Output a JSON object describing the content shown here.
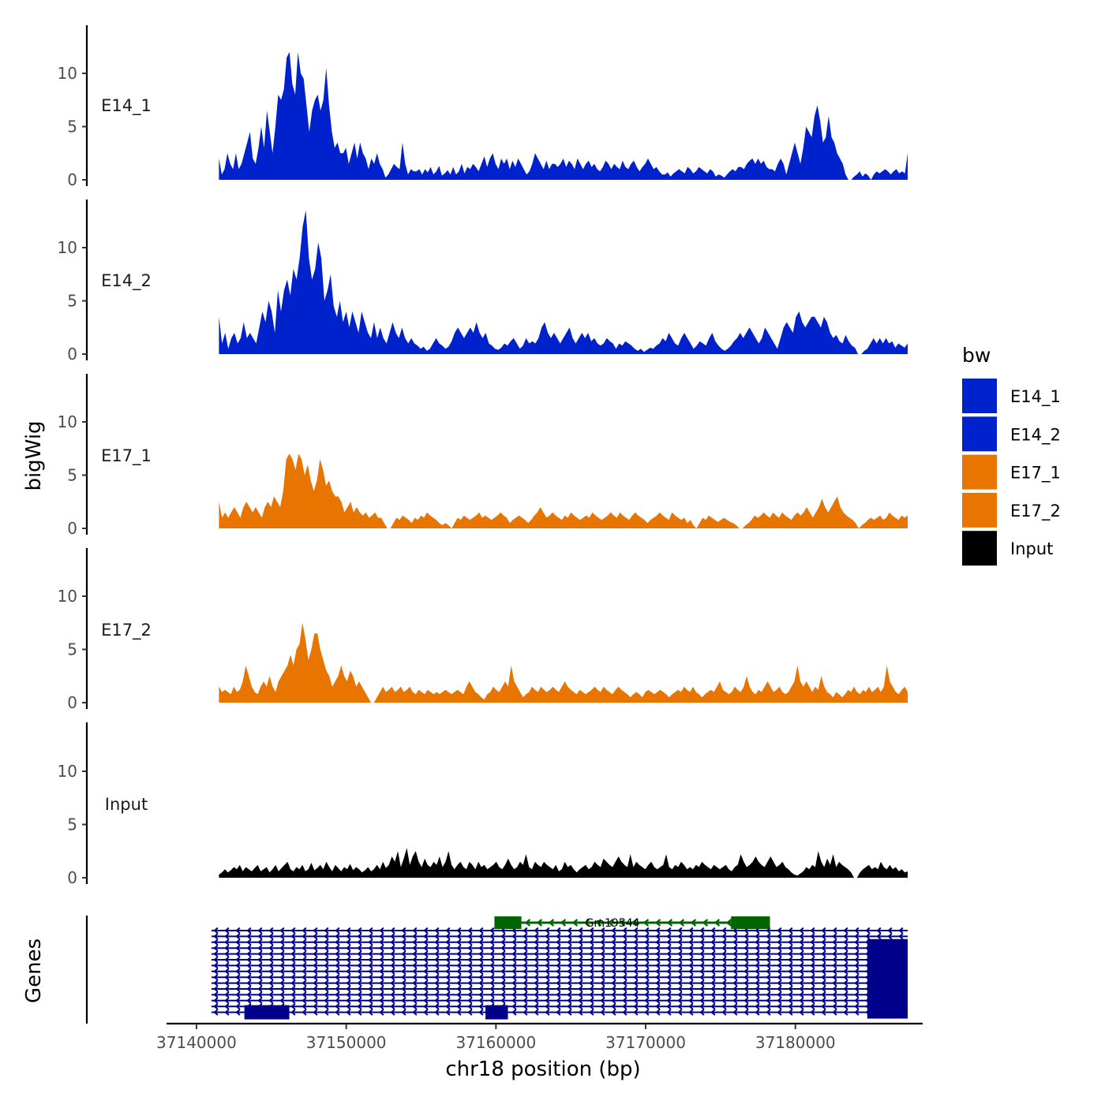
{
  "chart_data": {
    "type": "area",
    "chromosome": "chr18",
    "xlabel": "chr18 position (bp)",
    "ylabel": "bigWig",
    "genes_ylabel": "Genes",
    "xlim": [
      37138000,
      37188500
    ],
    "data_xrange": [
      37141500,
      37187500
    ],
    "ylim": [
      0,
      14
    ],
    "x_ticks": [
      37140000,
      37150000,
      37160000,
      37170000,
      37180000
    ],
    "x_tick_labels": [
      "37140000",
      "37150000",
      "37160000",
      "37170000",
      "37180000"
    ],
    "y_ticks": [
      0,
      5,
      10
    ],
    "y_tick_labels": [
      "0",
      "5",
      "10"
    ],
    "legend": {
      "title": "bw",
      "entries": [
        {
          "label": "E14_1",
          "color": "#0022cc"
        },
        {
          "label": "E14_2",
          "color": "#0022cc"
        },
        {
          "label": "E17_1",
          "color": "#e87500"
        },
        {
          "label": "E17_2",
          "color": "#e87500"
        },
        {
          "label": "Input",
          "color": "#000000"
        }
      ]
    },
    "series": [
      {
        "name": "E14_1",
        "color": "#0022cc",
        "values": [
          2,
          0.5,
          1,
          2.5,
          1.5,
          1,
          2.5,
          1,
          1.5,
          2.5,
          3.5,
          4.5,
          2,
          1.5,
          3,
          5,
          3,
          6.5,
          4.5,
          2.5,
          5,
          8,
          7.5,
          8.5,
          11.5,
          12,
          9,
          8,
          12,
          10,
          9.5,
          7,
          4.5,
          6.5,
          7.5,
          8,
          6.5,
          7.5,
          10.5,
          7,
          4.5,
          3,
          3.5,
          2.5,
          2.5,
          3,
          1.5,
          2.5,
          3.5,
          2,
          3.5,
          2.5,
          2,
          1,
          2,
          1.5,
          2.5,
          1.5,
          1,
          0.2,
          0.5,
          1,
          1.5,
          1.2,
          1,
          3.5,
          1.5,
          0.5,
          1,
          0.8,
          0.8,
          1,
          0.5,
          1,
          0.7,
          1.2,
          0.5,
          0.8,
          1.3,
          0.4,
          0.6,
          0.9,
          0.5,
          1.2,
          0.5,
          0.8,
          1.5,
          0.6,
          1.2,
          1,
          1.5,
          1.2,
          0.8,
          1.5,
          2.2,
          1.2,
          2,
          2.5,
          1.5,
          1,
          2,
          1.5,
          2,
          1,
          1.8,
          1.2,
          2,
          1.5,
          1,
          0.5,
          0.8,
          1.5,
          2.5,
          2,
          1.5,
          1,
          1.8,
          1,
          1.5,
          1.5,
          1.2,
          1.5,
          2,
          1.2,
          1.8,
          1.5,
          1,
          2,
          1.5,
          1,
          1.5,
          1.8,
          1.2,
          1.5,
          1,
          0.8,
          1.2,
          1.8,
          1.5,
          1,
          1.5,
          1.2,
          1,
          1.8,
          1.2,
          1,
          1.5,
          1.8,
          1.2,
          0.8,
          1.2,
          1.5,
          2,
          1.5,
          1,
          1.2,
          0.8,
          0.5,
          0.5,
          0.7,
          0.3,
          0.6,
          0.8,
          1,
          0.8,
          0.6,
          1.2,
          1,
          0.6,
          0.8,
          1.2,
          1,
          0.8,
          0.6,
          1,
          0.8,
          0.3,
          0.5,
          0.4,
          0.2,
          0.5,
          0.8,
          1,
          0.8,
          1.2,
          1.2,
          1,
          1.5,
          1.8,
          2,
          1.5,
          2,
          1.5,
          1.8,
          1.2,
          1,
          1,
          0.8,
          1.5,
          2,
          1.5,
          0.5,
          1.5,
          2.5,
          3.5,
          2.5,
          1.5,
          3,
          5,
          4.5,
          4,
          6,
          7,
          5.5,
          3.5,
          4,
          6,
          4,
          3.5,
          2.5,
          2,
          1.5,
          0.5,
          0,
          0,
          0.3,
          0.5,
          0.8,
          0.3,
          0.6,
          0.4,
          0,
          0.5,
          0.8,
          0.6,
          0.8,
          1,
          0.8,
          0.5,
          0.8,
          1,
          0.6,
          0.8,
          0.6,
          2.5
        ]
      },
      {
        "name": "E14_2",
        "color": "#0022cc",
        "values": [
          3.5,
          1,
          2,
          0.5,
          1.5,
          2,
          1,
          1.5,
          3,
          1.5,
          2,
          1.5,
          1,
          2.5,
          4,
          3,
          5,
          4,
          2,
          6,
          4,
          6,
          7,
          5.5,
          8,
          7,
          9,
          12,
          13.5,
          9,
          7,
          8,
          10.5,
          9,
          5,
          6,
          7.5,
          4.5,
          3.5,
          5,
          3,
          4,
          2.5,
          4,
          3,
          2,
          4,
          3,
          2,
          1.5,
          3,
          1.5,
          2.5,
          1.5,
          1,
          2,
          3,
          2,
          1.5,
          2.5,
          1.5,
          1,
          1.5,
          1,
          0.8,
          0.5,
          0.7,
          0.3,
          0.5,
          1,
          1.5,
          1,
          0.8,
          0.5,
          0.7,
          1.2,
          2,
          2.5,
          2,
          1.5,
          2,
          2.5,
          2,
          3,
          2,
          1.5,
          2,
          1,
          0.8,
          0.5,
          0.4,
          0.6,
          1,
          0.8,
          1.2,
          1.5,
          1,
          0.5,
          0.8,
          1.5,
          1,
          1.2,
          1,
          1.5,
          2.5,
          3,
          2,
          1.5,
          2,
          1.5,
          1,
          1.5,
          2,
          2.5,
          1.5,
          1,
          1.5,
          2,
          1.5,
          2,
          1.2,
          1.5,
          1,
          0.8,
          1,
          1.5,
          1.2,
          1,
          0.5,
          1,
          0.8,
          1.2,
          1,
          0.8,
          0.5,
          0.3,
          0.5,
          0.2,
          0.4,
          0.6,
          0.5,
          0.8,
          1,
          1.5,
          1.2,
          2,
          1.5,
          1,
          0.8,
          1.5,
          2,
          1.5,
          1,
          0.5,
          0.8,
          1.2,
          1,
          0.8,
          1.5,
          2,
          1.2,
          0.8,
          0.5,
          0.3,
          0.5,
          0.8,
          1.2,
          1.5,
          2,
          1.5,
          2,
          2.5,
          2,
          1.5,
          1,
          1.5,
          2.5,
          2,
          1.5,
          1,
          0.5,
          1.5,
          2.5,
          3,
          2.5,
          2,
          3.5,
          4,
          3,
          2.5,
          3,
          3.5,
          3.5,
          3,
          2.5,
          3.5,
          3,
          2,
          1.5,
          1.8,
          1.2,
          1,
          1.8,
          1.2,
          0.8,
          0.6,
          0,
          0,
          0.3,
          0.5,
          1,
          1.5,
          1,
          1.5,
          1,
          1.5,
          1,
          1.2,
          0.6,
          1,
          0.8,
          0.6,
          1
        ]
      },
      {
        "name": "E17_1",
        "color": "#e87500",
        "values": [
          2.5,
          1,
          1.5,
          1,
          1.5,
          2,
          1.5,
          1,
          2,
          2.5,
          2,
          1.5,
          2,
          1.5,
          1,
          2,
          2.5,
          2,
          3,
          2.5,
          2,
          3.5,
          6.5,
          7,
          6.5,
          5.5,
          7,
          6.5,
          5,
          6,
          4.5,
          3.5,
          4.5,
          6.5,
          5.5,
          4,
          4.5,
          3.5,
          3,
          3,
          2.5,
          1.5,
          2,
          2.5,
          1.5,
          2,
          1.5,
          1.2,
          1.5,
          1,
          1.2,
          1.5,
          1,
          1,
          0.5,
          0,
          0,
          0.5,
          1,
          0.8,
          1.2,
          1,
          0.8,
          0.5,
          1,
          0.8,
          1.2,
          1,
          1.5,
          1.2,
          1,
          0.8,
          0.5,
          0.3,
          0.5,
          0.3,
          0,
          0.5,
          1,
          0.8,
          1.2,
          1,
          0.8,
          1,
          1.2,
          1.5,
          1,
          1.2,
          1,
          0.8,
          1,
          1.2,
          1.5,
          1.2,
          1,
          0.5,
          0.8,
          1,
          1.2,
          1,
          0.8,
          0.5,
          0.8,
          1.2,
          1.5,
          2,
          1.5,
          1,
          1.2,
          1.5,
          1.2,
          1,
          0.8,
          1.2,
          1,
          1.5,
          1.2,
          1,
          0.8,
          1,
          1.2,
          1,
          1.5,
          1.2,
          1,
          0.8,
          1,
          1.2,
          1.5,
          1.2,
          1,
          1.5,
          1.2,
          1,
          0.8,
          1.2,
          1.5,
          1.2,
          1,
          0.8,
          0.5,
          0.8,
          1,
          1.2,
          1.5,
          1.2,
          1,
          0.8,
          1.5,
          1.2,
          1,
          0.8,
          1,
          0.5,
          0.8,
          0.3,
          0,
          0.5,
          1,
          0.8,
          1.2,
          1,
          0.8,
          0.6,
          0.8,
          1,
          0.8,
          0.6,
          0.5,
          0.3,
          0,
          0,
          0.3,
          0.5,
          0.8,
          1.2,
          1,
          1.2,
          1.5,
          1.2,
          1,
          1.5,
          1.2,
          1,
          1.5,
          1.2,
          1,
          0.8,
          1.2,
          1.5,
          1.2,
          1.5,
          2,
          1.5,
          1,
          1.5,
          2,
          2.8,
          2,
          1.5,
          2,
          2.5,
          3,
          2,
          1.5,
          1.2,
          1,
          0.8,
          0.5,
          0,
          0.3,
          0.5,
          0.8,
          1,
          0.8,
          1,
          1.2,
          0.8,
          1,
          1.5,
          1.2,
          1,
          0.8,
          1.2,
          1,
          1.2
        ]
      },
      {
        "name": "E17_2",
        "color": "#e87500",
        "values": [
          1.5,
          1,
          1.2,
          1,
          0.8,
          1.5,
          1,
          1.2,
          2,
          3.5,
          2.5,
          1.5,
          1,
          0.8,
          1.5,
          2,
          1.5,
          2.5,
          1.5,
          1,
          2,
          2.5,
          3,
          3.5,
          4.5,
          3.5,
          5,
          5.5,
          7.5,
          6,
          4,
          5,
          6.5,
          6.5,
          5,
          4,
          3,
          2.5,
          1.5,
          2,
          2.5,
          3.5,
          2.5,
          2,
          3,
          2.5,
          1.5,
          2,
          1.5,
          1,
          0.5,
          0,
          0,
          0.5,
          1,
          1.5,
          1,
          1.2,
          1.5,
          1,
          1.2,
          1.5,
          1,
          1.2,
          1.5,
          1,
          0.8,
          1.2,
          1,
          0.8,
          1.2,
          1,
          0.8,
          1,
          0.8,
          1,
          1.2,
          1,
          0.8,
          1,
          1.2,
          1,
          0.8,
          1.5,
          2,
          1.5,
          1,
          0.8,
          0.5,
          0.3,
          0.8,
          1,
          1.5,
          1.2,
          1,
          1.5,
          2,
          1.5,
          3.5,
          2,
          1.5,
          1,
          0.5,
          0.8,
          1,
          1.5,
          1.2,
          1,
          1.5,
          1.2,
          1,
          1.2,
          1.5,
          1.2,
          1,
          1.5,
          2,
          1.5,
          1.2,
          1,
          0.8,
          1.2,
          1,
          0.8,
          1,
          1.2,
          1.5,
          1.2,
          1,
          1.5,
          1.2,
          1,
          0.8,
          1.2,
          1.5,
          1.2,
          1,
          0.8,
          0.5,
          0.8,
          1,
          0.8,
          0.5,
          1,
          1.2,
          1,
          0.8,
          1,
          1.2,
          1,
          0.8,
          0.5,
          0.8,
          1,
          1.2,
          1,
          1.5,
          1.2,
          1,
          1.5,
          1,
          0.8,
          0.5,
          0.8,
          1,
          1.2,
          1,
          1.5,
          2,
          1.2,
          1,
          0.8,
          1,
          1.5,
          1.2,
          1,
          1.5,
          2.5,
          1.5,
          1,
          0.8,
          1.2,
          1,
          1.5,
          2,
          1.5,
          1,
          1.2,
          1.5,
          1,
          0.8,
          1,
          1.5,
          2,
          3.5,
          2,
          1.5,
          2,
          1.5,
          1,
          1.5,
          1.2,
          2.5,
          1.5,
          1,
          0.8,
          0.5,
          1,
          0.8,
          0.5,
          0.8,
          1.2,
          1,
          1.5,
          1,
          0.8,
          1.2,
          1,
          1.5,
          1,
          1.2,
          1.5,
          1,
          1.5,
          3.5,
          2,
          1.5,
          1,
          0.8,
          1.2,
          1.5,
          1
        ]
      },
      {
        "name": "Input",
        "color": "#000000",
        "values": [
          0.3,
          0.5,
          0.8,
          0.5,
          0.7,
          1,
          0.8,
          1.2,
          0.6,
          1,
          0.8,
          0.6,
          0.9,
          1.2,
          0.6,
          0.8,
          1,
          0.5,
          0.8,
          1.2,
          0.6,
          0.9,
          1.2,
          1.5,
          0.8,
          0.6,
          1,
          0.8,
          1.2,
          0.6,
          0.8,
          1.4,
          0.7,
          0.9,
          1.2,
          0.8,
          1.5,
          1,
          0.6,
          1.2,
          0.9,
          0.6,
          1,
          0.8,
          1.3,
          0.7,
          1,
          0.8,
          0.5,
          0.7,
          1,
          0.6,
          0.8,
          1.2,
          0.8,
          1.5,
          0.9,
          1.2,
          2,
          1.5,
          2.5,
          1,
          1.8,
          2.8,
          1.2,
          2,
          2.5,
          1.5,
          1,
          1.8,
          1.2,
          1,
          1.5,
          1.2,
          2,
          1,
          1.5,
          2.5,
          1.2,
          0.8,
          1.2,
          1.5,
          1,
          0.8,
          1.5,
          1.2,
          0.8,
          1.5,
          1,
          1.2,
          0.8,
          1,
          1.2,
          1.5,
          1,
          0.8,
          1.2,
          1.8,
          1.2,
          0.8,
          1,
          1.5,
          1.2,
          2.2,
          1,
          0.8,
          1.5,
          1.2,
          1,
          1.5,
          1.2,
          1,
          0.8,
          1.2,
          0.6,
          0.8,
          1.5,
          1,
          1.2,
          0.8,
          0.5,
          0.8,
          1,
          1.2,
          0.8,
          1,
          1.5,
          1.2,
          1,
          1.8,
          1.5,
          1.2,
          1,
          1.5,
          2,
          1.5,
          1.2,
          1,
          2.2,
          1,
          1.5,
          1.2,
          1,
          0.8,
          1.2,
          1.5,
          1,
          0.8,
          1,
          1.2,
          2.2,
          1,
          0.8,
          1.2,
          1,
          1.5,
          1.2,
          0.8,
          1,
          0.8,
          1.2,
          1,
          1.5,
          1.2,
          1,
          0.8,
          1.2,
          1,
          0.8,
          1,
          1.2,
          0.8,
          0.6,
          1,
          1.2,
          2.2,
          1.5,
          1,
          1.2,
          1.5,
          2,
          1.5,
          1.2,
          1,
          1.5,
          2,
          1.5,
          1,
          1.2,
          1.5,
          1,
          0.8,
          0.5,
          0.3,
          0.2,
          0.4,
          0.6,
          1,
          0.8,
          1.2,
          1,
          2.5,
          1.5,
          1,
          1.8,
          1.2,
          2.2,
          1,
          1.5,
          1.2,
          1,
          0.8,
          0.5,
          0,
          0,
          0.5,
          0.8,
          1,
          1.2,
          0.8,
          1,
          0.8,
          1.5,
          1,
          0.8,
          1.2,
          0.8,
          1,
          0.6,
          0.8,
          0.5,
          0.6
        ]
      }
    ],
    "genes_track": {
      "row_count": 15,
      "row_start": 37141000,
      "row_end": 37187500,
      "strand": "-",
      "color": "#00008b",
      "visible_label": "Gm19544",
      "visible_label_color": "#006400",
      "highlighted_gene": {
        "name": "Gm19544",
        "start": 37159900,
        "end": 37178300,
        "color": "#006400",
        "exons": [
          [
            37159900,
            37161700
          ],
          [
            37175700,
            37178300
          ]
        ]
      },
      "overlapping_labels_note": "stacked transcript labels at ~37163000 are overprinted and illegible",
      "exons": [
        {
          "start": 37143200,
          "end": 37146200,
          "row": 14
        },
        {
          "start": 37159300,
          "end": 37160800,
          "row": 14
        },
        {
          "start": 37184800,
          "end": 37187500,
          "row_from": 2,
          "row_to": 14
        }
      ]
    }
  }
}
